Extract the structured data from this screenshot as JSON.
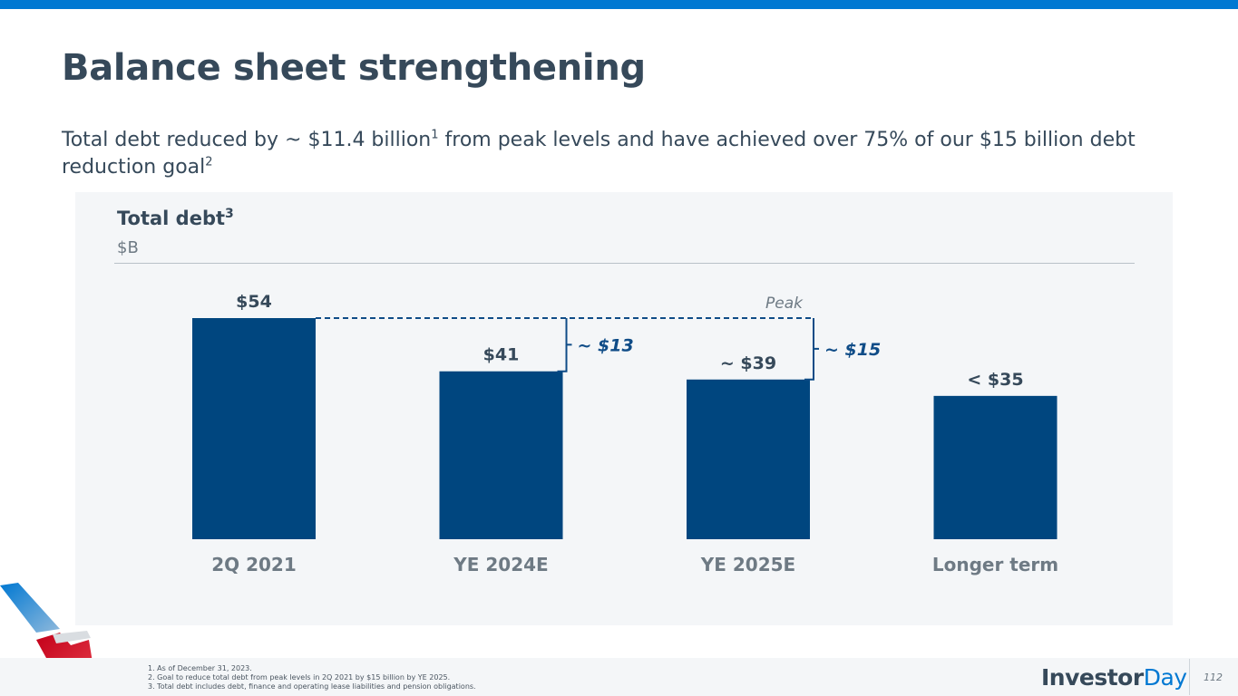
{
  "header": {
    "title": "Balance sheet strengthening",
    "subtitle_part1": "Total debt reduced by ~ $11.4 billion",
    "subtitle_sup1": "1",
    "subtitle_part2": " from peak levels and have achieved over 75% of our $15 billion debt reduction goal",
    "subtitle_sup2": "2"
  },
  "chart_header": {
    "title": "Total debt",
    "title_sup": "3",
    "unit": "$B"
  },
  "chart_data": {
    "type": "bar",
    "title": "Total debt",
    "ylabel": "$B",
    "categories": [
      "2Q 2021",
      "YE 2024E",
      "YE 2025E",
      "Longer term"
    ],
    "values": [
      54,
      41,
      39,
      35
    ],
    "value_labels": [
      "$54",
      "$41",
      "~ $39",
      "< $35"
    ],
    "ylim": [
      0,
      54
    ],
    "color": "#00467f",
    "annotations": [
      {
        "text": "Peak",
        "style": "italic"
      },
      {
        "text": "~ $13",
        "from": "2Q 2021",
        "to": "YE 2024E"
      },
      {
        "text": "~ $15",
        "from": "2Q 2021",
        "to": "YE 2025E"
      }
    ],
    "annotation_color": "#0f4c87"
  },
  "footer": {
    "footnotes": [
      "1. As of December 31, 2023.",
      "2. Goal to reduce total debt from peak levels in 2Q 2021 by $15 billion by YE 2025.",
      "3. Total debt includes debt, finance and operating lease liabilities and pension obligations."
    ],
    "brand_bold": "Investor",
    "brand_light": "Day",
    "page_number": "112",
    "logo_icon": "american-airlines-flight-symbol-icon"
  }
}
